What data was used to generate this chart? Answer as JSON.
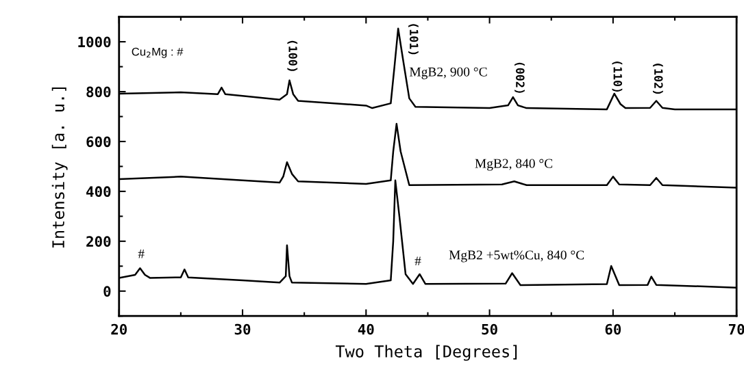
{
  "chart_data": {
    "type": "line",
    "xlabel": "Two Theta [Degrees]",
    "ylabel": "Intensity [a. u.]",
    "xlim": [
      20,
      70
    ],
    "ylim": [
      -100,
      1100
    ],
    "xticks": [
      20,
      30,
      40,
      50,
      60,
      70
    ],
    "yticks": [
      0,
      200,
      400,
      600,
      800,
      1000
    ],
    "grid": false,
    "marker": "none",
    "line_style": "solid",
    "series": [
      {
        "color": "#000000",
        "x": [
          20,
          25,
          28,
          28.3,
          28.6,
          30,
          33,
          33.6,
          33.8,
          34.1,
          34.5,
          40,
          40.5,
          42,
          42.3,
          42.6,
          43,
          43.5,
          44,
          50,
          51.5,
          51.9,
          52.3,
          53,
          59.5,
          60.1,
          60.6,
          61,
          63,
          63.5,
          64,
          65,
          70
        ],
        "values": [
          792,
          797,
          790,
          816,
          790,
          783,
          768,
          790,
          845,
          790,
          763,
          744,
          734,
          753,
          900,
          1053,
          927,
          773,
          739,
          734,
          745,
          778,
          745,
          734,
          729,
          792,
          750,
          734,
          735,
          763,
          735,
          729,
          729
        ]
      },
      {
        "color": "#000000",
        "x": [
          20,
          25,
          30,
          33,
          33.3,
          33.6,
          34,
          34.5,
          40,
          42,
          42.2,
          42.47,
          42.8,
          43.5,
          51,
          52,
          53,
          59.5,
          60,
          60.5,
          63,
          63.5,
          64,
          70
        ],
        "values": [
          449,
          459,
          444,
          435,
          460,
          517,
          470,
          440,
          430,
          444,
          560,
          671,
          560,
          425,
          428,
          440,
          425,
          425,
          459,
          428,
          425,
          454,
          425,
          415
        ]
      },
      {
        "color": "#000000",
        "x": [
          20,
          21.3,
          21.7,
          22.1,
          22.5,
          25,
          25.3,
          25.6,
          30,
          33,
          33.5,
          33.6,
          33.8,
          34,
          40,
          42,
          42.2,
          42.37,
          42.7,
          43.2,
          43.8,
          44.34,
          44.8,
          51.3,
          51.83,
          52.5,
          59.5,
          59.85,
          60.5,
          62.8,
          63.1,
          63.5,
          70
        ],
        "values": [
          53,
          65,
          92,
          65,
          53,
          55,
          87,
          55,
          43,
          34,
          60,
          184,
          60,
          34,
          29,
          43,
          200,
          444,
          300,
          68,
          29,
          68,
          29,
          30,
          72,
          24,
          28,
          101,
          24,
          25,
          58,
          25,
          14
        ]
      }
    ],
    "annotations": [
      "Cu$_{2}$Mg : #",
      "(100)",
      "(101)",
      "(002)",
      "(110)",
      "(102)",
      "#",
      "#",
      "MgB2, 900 °C",
      "MgB2, 840 °C",
      "MgB2 +5wt%Cu, 840 °C"
    ]
  }
}
